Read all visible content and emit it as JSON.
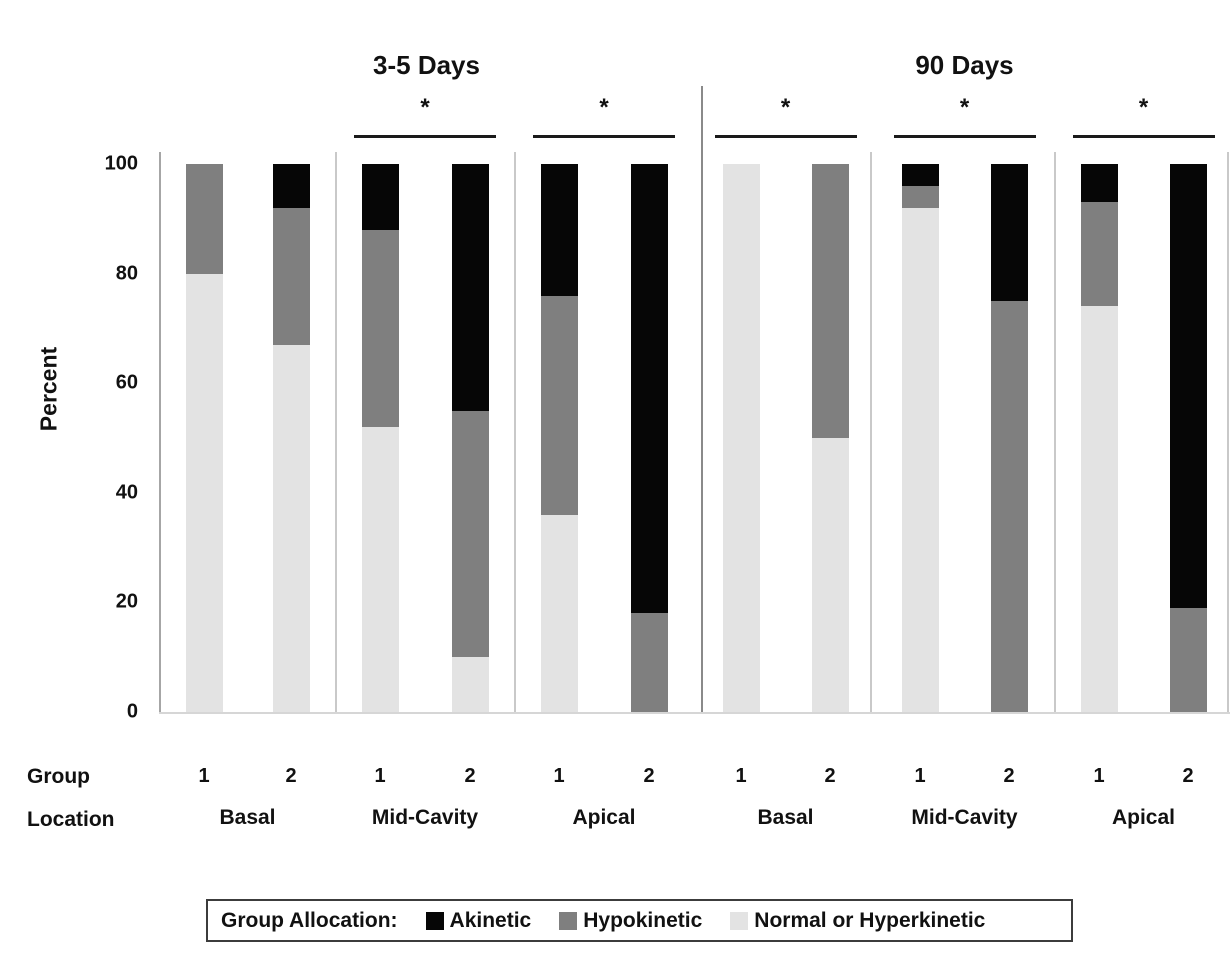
{
  "y_axis": {
    "title": "Percent",
    "ticks": [
      100,
      80,
      60,
      40,
      20,
      0
    ]
  },
  "x_axis": {
    "row1_label": "Group",
    "row2_label": "Location"
  },
  "significance_symbol": "*",
  "colors": {
    "akinetic": "#060606",
    "hypokinetic": "#7f7f7f",
    "normal": "#e3e3e3"
  },
  "legend": {
    "prefix": "Group Allocation:",
    "items": [
      {
        "label": "Akinetic",
        "key": "akinetic"
      },
      {
        "label": "Hypokinetic",
        "key": "hypokinetic"
      },
      {
        "label": "Normal or Hyperkinetic",
        "key": "normal"
      }
    ]
  },
  "chart_data": {
    "type": "bar",
    "stacked": true,
    "units": "percent",
    "ylim": [
      0,
      100
    ],
    "series_order": [
      "akinetic",
      "hypokinetic",
      "normal"
    ],
    "panels": [
      {
        "title": "3-5 Days",
        "groups": [
          {
            "location": "Basal",
            "significant": false,
            "bars": [
              {
                "group": "1",
                "akinetic": 0,
                "hypokinetic": 20,
                "normal": 80
              },
              {
                "group": "2",
                "akinetic": 8,
                "hypokinetic": 25,
                "normal": 67
              }
            ]
          },
          {
            "location": "Mid-Cavity",
            "significant": true,
            "bars": [
              {
                "group": "1",
                "akinetic": 12,
                "hypokinetic": 36,
                "normal": 52
              },
              {
                "group": "2",
                "akinetic": 45,
                "hypokinetic": 45,
                "normal": 10
              }
            ]
          },
          {
            "location": "Apical",
            "significant": true,
            "bars": [
              {
                "group": "1",
                "akinetic": 24,
                "hypokinetic": 40,
                "normal": 36
              },
              {
                "group": "2",
                "akinetic": 82,
                "hypokinetic": 18,
                "normal": 0
              }
            ]
          }
        ]
      },
      {
        "title": "90 Days",
        "groups": [
          {
            "location": "Basal",
            "significant": true,
            "bars": [
              {
                "group": "1",
                "akinetic": 0,
                "hypokinetic": 0,
                "normal": 100
              },
              {
                "group": "2",
                "akinetic": 0,
                "hypokinetic": 50,
                "normal": 50
              }
            ]
          },
          {
            "location": "Mid-Cavity",
            "significant": true,
            "bars": [
              {
                "group": "1",
                "akinetic": 4,
                "hypokinetic": 4,
                "normal": 92
              },
              {
                "group": "2",
                "akinetic": 25,
                "hypokinetic": 75,
                "normal": 0
              }
            ]
          },
          {
            "location": "Apical",
            "significant": true,
            "bars": [
              {
                "group": "1",
                "akinetic": 7,
                "hypokinetic": 19,
                "normal": 74
              },
              {
                "group": "2",
                "akinetic": 81,
                "hypokinetic": 19,
                "normal": 0
              }
            ]
          }
        ]
      }
    ]
  }
}
